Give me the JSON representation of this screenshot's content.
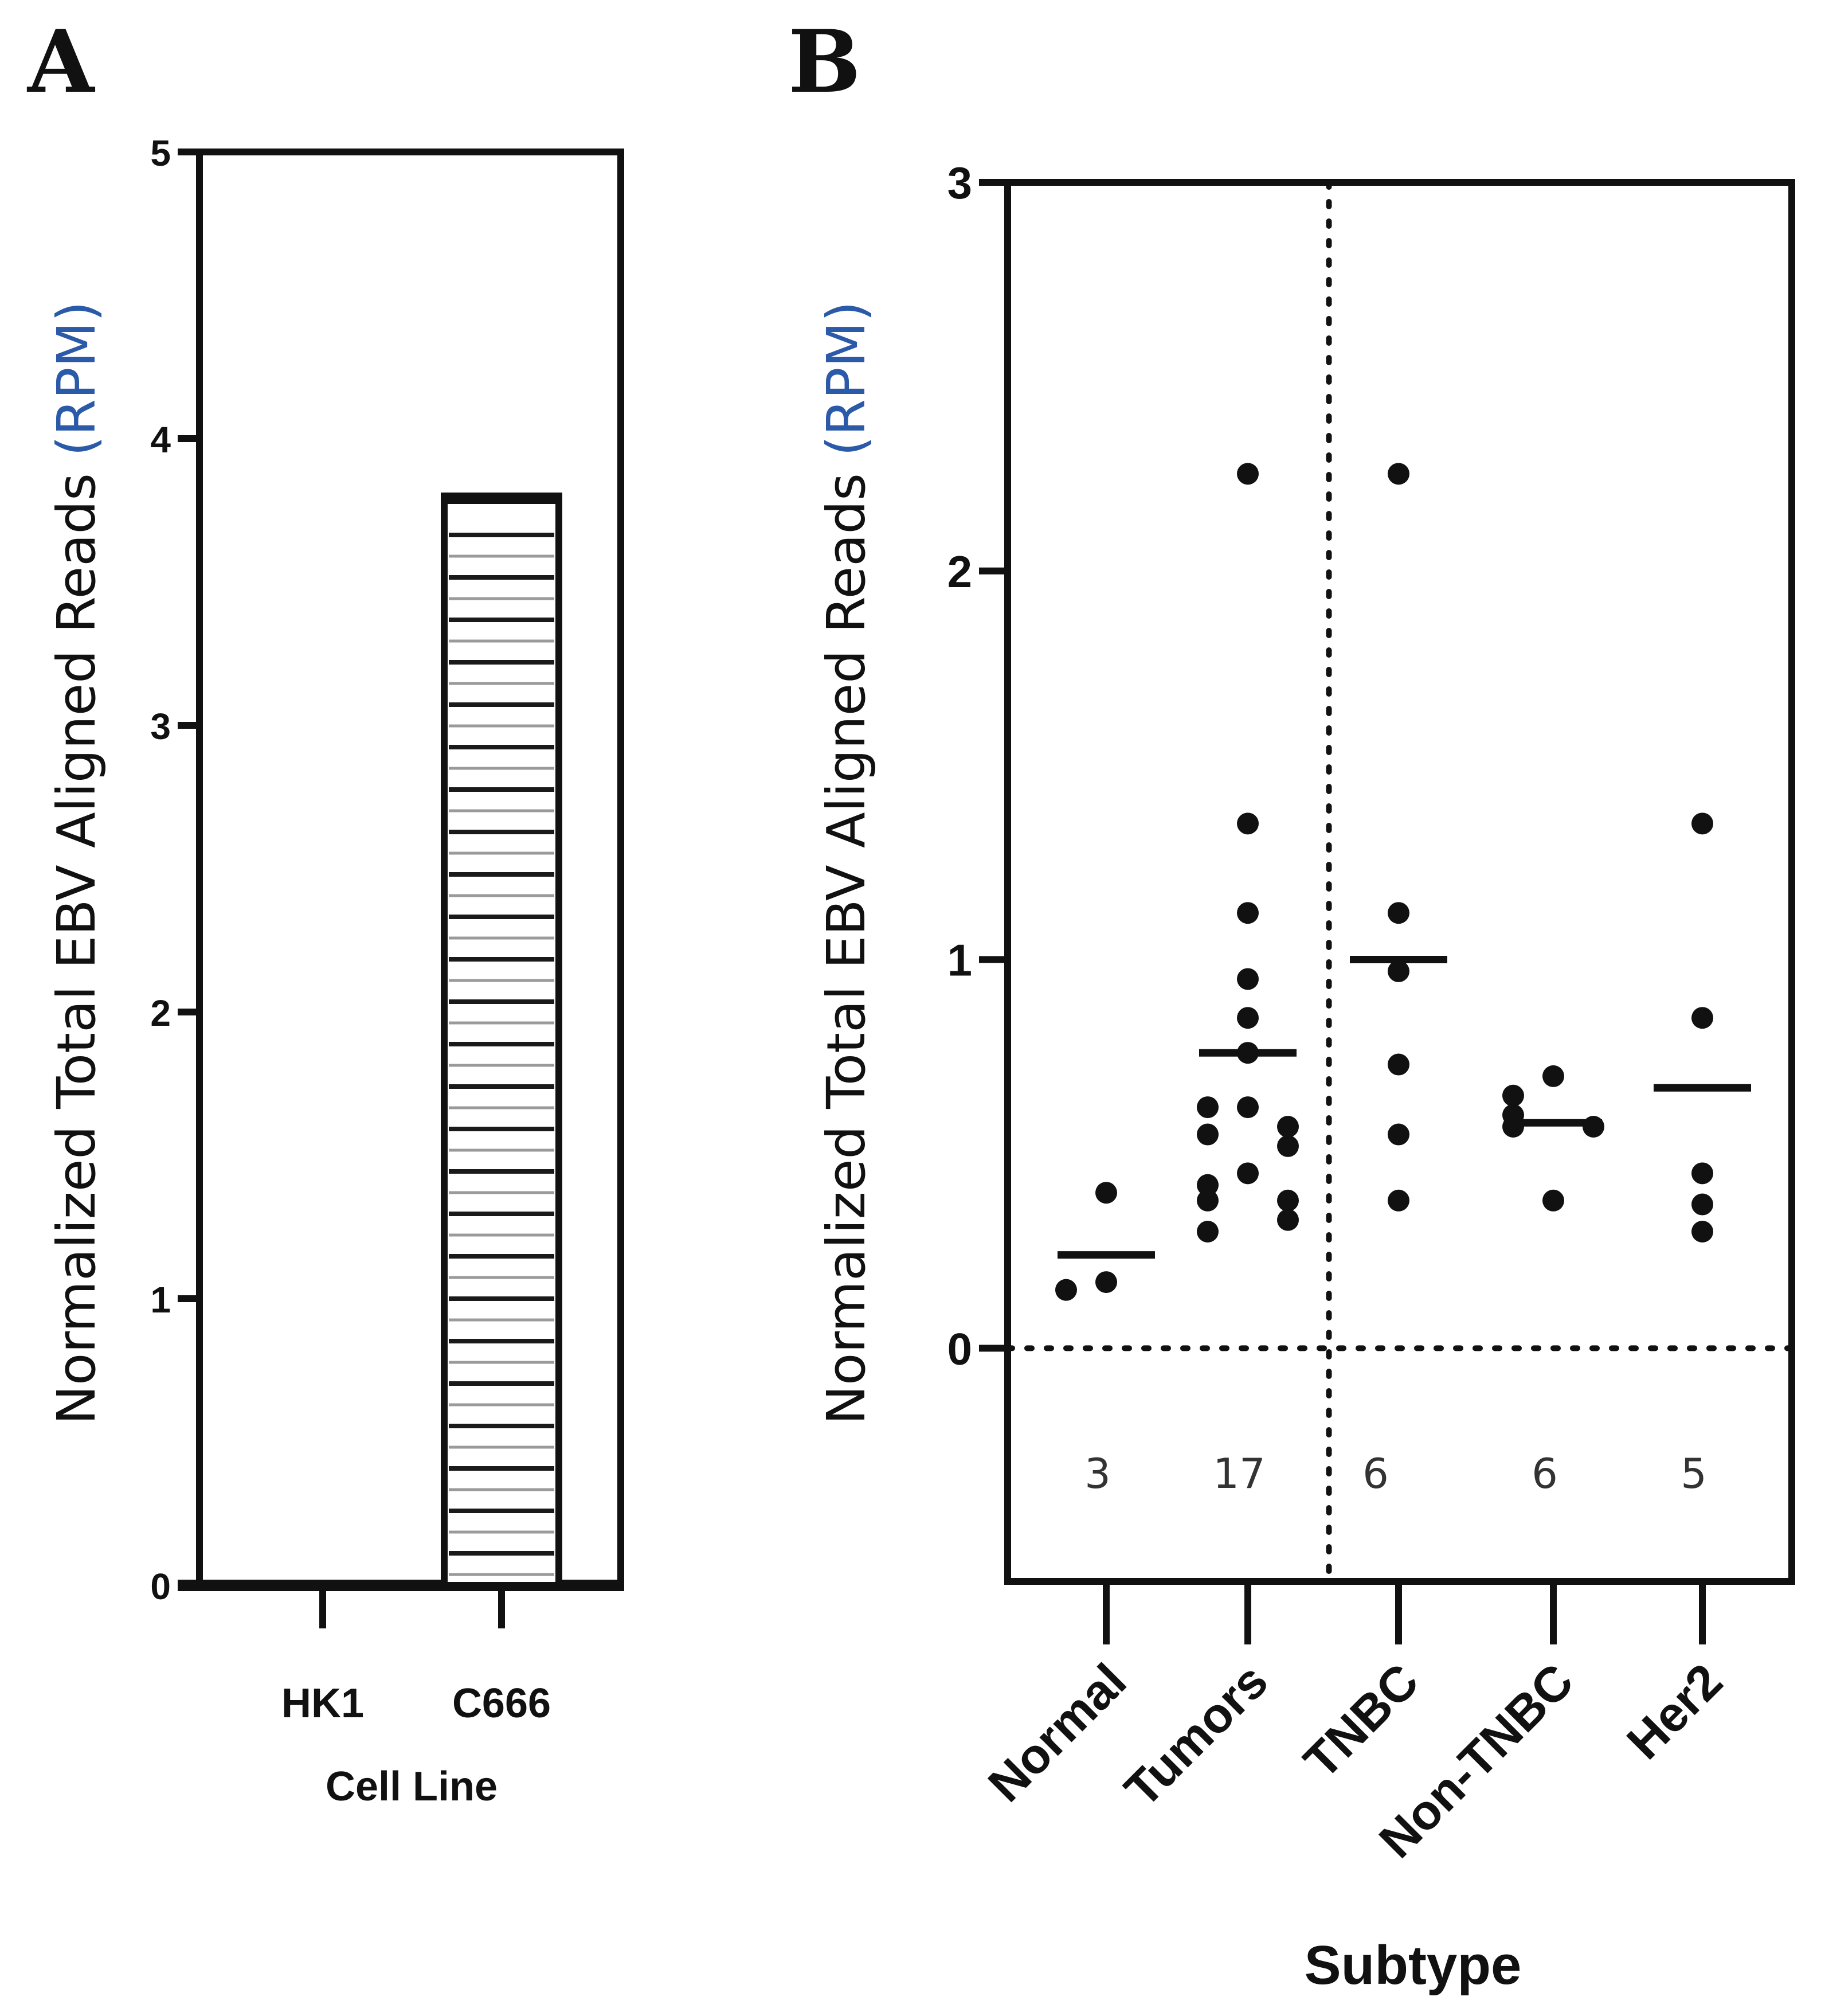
{
  "chart_data": [
    {
      "panel": "A",
      "type": "bar",
      "ylabel_main": "Normalized Total EBV Aligned Reads",
      "ylabel_unit": "(RPM)",
      "xlabel": "Cell Line",
      "categories": [
        "HK1",
        "C666"
      ],
      "values": [
        0,
        3.8
      ],
      "ylim": [
        0,
        5
      ],
      "yticks": [
        "0",
        "1",
        "2",
        "3",
        "4",
        "5"
      ],
      "colors": {
        "bar_fill": "#ffffff",
        "bar_stroke": "#111111",
        "hatch_dark": "#1a1a1a",
        "hatch_light": "#9a9a9a"
      }
    },
    {
      "panel": "B",
      "type": "scatter",
      "ylabel_main": "Normalized Total EBV Aligned Reads",
      "ylabel_unit": "(RPM)",
      "xlabel": "Subtype",
      "ylim": [
        -0.6,
        3
      ],
      "yticks": [
        "0",
        "1",
        "2",
        "3"
      ],
      "reference_line_y": 0,
      "divider_after_category": "Tumors",
      "groups": [
        {
          "name": "Normal",
          "n": "3",
          "mean": 0.24,
          "points": [
            0.15,
            0.17,
            0.4
          ]
        },
        {
          "name": "Tumors",
          "n": "17",
          "mean": 0.76,
          "points": [
            2.25,
            1.35,
            1.12,
            0.95,
            0.85,
            0.76,
            0.62,
            0.62,
            0.57,
            0.55,
            0.52,
            0.45,
            0.42,
            0.38,
            0.38,
            0.3,
            0.33
          ]
        },
        {
          "name": "TNBC",
          "n": "6",
          "mean": 1.0,
          "points": [
            2.25,
            1.12,
            0.97,
            0.73,
            0.55,
            0.38
          ]
        },
        {
          "name": "Non-TNBC",
          "n": "6",
          "mean": 0.58,
          "points": [
            0.7,
            0.65,
            0.6,
            0.57,
            0.57,
            0.38
          ]
        },
        {
          "name": "Her2",
          "n": "5",
          "mean": 0.67,
          "points": [
            1.35,
            0.85,
            0.45,
            0.37,
            0.3
          ]
        }
      ]
    }
  ]
}
